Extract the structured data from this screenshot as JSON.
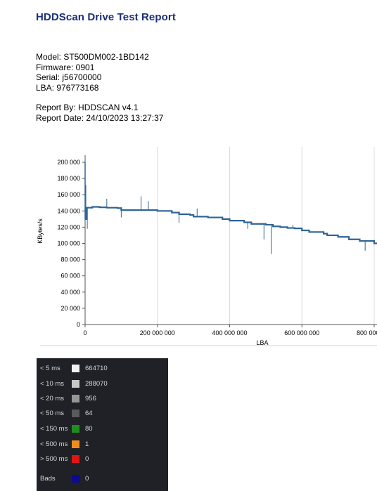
{
  "report": {
    "title": "HDDScan Drive Test Report",
    "model": "Model: ST500DM002-1BD142",
    "firmware": "Firmware: 0901",
    "serial": "Serial: j56700000",
    "lba": "LBA: 976773168",
    "report_by": "Report By: HDDSCAN v4.1",
    "report_date": "Report Date: 24/10/2023 13:27:37"
  },
  "chart_data": {
    "type": "line",
    "xlabel": "LBA",
    "ylabel": "KBytes/s",
    "xlim": [
      0,
      800000000
    ],
    "ylim": [
      0,
      200000
    ],
    "x_tick_labels": [
      "0",
      "200 000 000",
      "400 000 000",
      "600 000 000",
      "800 000 000"
    ],
    "y_tick_labels": [
      "0",
      "20 000",
      "40 000",
      "60 000",
      "80 000",
      "100 000",
      "120 000",
      "140 000",
      "160 000",
      "180 000",
      "200 000"
    ],
    "grid": true,
    "series_color": "#2f6496",
    "series": [
      {
        "x": [
          0,
          5000000,
          20000000,
          40000000,
          60000000,
          90000000,
          100000000,
          130000000,
          160000000,
          200000000,
          240000000,
          260000000,
          290000000,
          300000000,
          340000000,
          380000000,
          400000000,
          440000000,
          460000000,
          500000000,
          520000000,
          540000000,
          560000000,
          580000000,
          600000000,
          620000000,
          660000000,
          670000000,
          700000000,
          730000000,
          760000000,
          800000000
        ],
        "y": [
          130000,
          144000,
          145000,
          144500,
          144000,
          143500,
          141000,
          141000,
          141000,
          140000,
          138000,
          136000,
          135000,
          133000,
          132000,
          130000,
          128000,
          126000,
          124000,
          123000,
          121000,
          120000,
          119000,
          118500,
          116000,
          114000,
          112000,
          110000,
          108000,
          105000,
          103000,
          100000
        ]
      }
    ],
    "spikes": [
      {
        "x": 2000000,
        "y": 172000
      },
      {
        "x": 6000000,
        "y": 118000
      },
      {
        "x": 60000000,
        "y": 155000
      },
      {
        "x": 100000000,
        "y": 132000
      },
      {
        "x": 155000000,
        "y": 158000
      },
      {
        "x": 175000000,
        "y": 152000
      },
      {
        "x": 200000000,
        "y": 140000
      },
      {
        "x": 260000000,
        "y": 125000
      },
      {
        "x": 310000000,
        "y": 143000
      },
      {
        "x": 450000000,
        "y": 118000
      },
      {
        "x": 495000000,
        "y": 105000
      },
      {
        "x": 515000000,
        "y": 87000
      },
      {
        "x": 575000000,
        "y": 123000
      },
      {
        "x": 775000000,
        "y": 91000
      }
    ]
  },
  "legend": {
    "rows": [
      {
        "label": "< 5 ms",
        "count": "664710",
        "color": "#f2f2f2"
      },
      {
        "label": "< 10 ms",
        "count": "288070",
        "color": "#c8c8c8"
      },
      {
        "label": "< 20 ms",
        "count": "956",
        "color": "#969696"
      },
      {
        "label": "< 50 ms",
        "count": "64",
        "color": "#5a5a5a"
      },
      {
        "label": "< 150 ms",
        "count": "80",
        "color": "#1f8c1f"
      },
      {
        "label": "< 500 ms",
        "count": "1",
        "color": "#f08c1e"
      },
      {
        "label": "> 500 ms",
        "count": "0",
        "color": "#e01414"
      },
      {
        "label": "Bads",
        "count": "0",
        "color": "#0a0a96"
      }
    ]
  }
}
